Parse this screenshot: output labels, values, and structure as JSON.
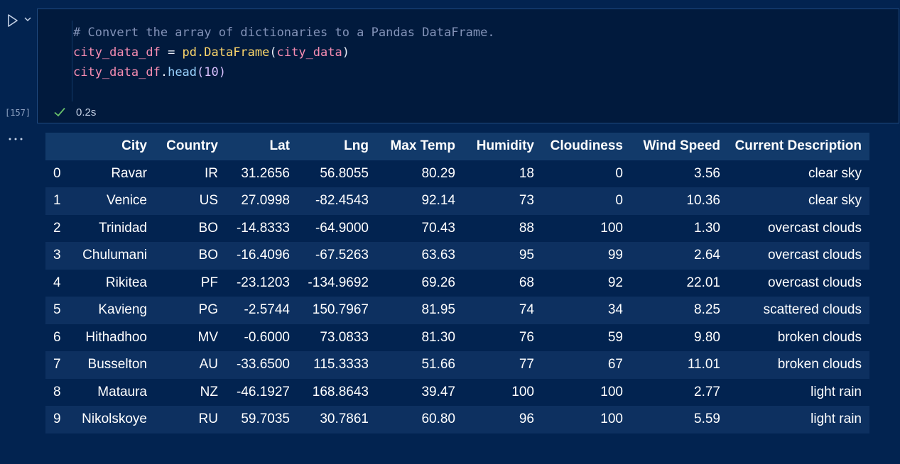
{
  "cell": {
    "execution_count": "[157]",
    "exec_time": "0.2s",
    "code": {
      "line1_comment": "# Convert the array of dictionaries to a Pandas DataFrame.",
      "line2_var": "city_data_df",
      "line2_op": " = ",
      "line2_fn": "pd.DataFrame",
      "line2_open": "(",
      "line2_arg": "city_data",
      "line2_close": ")",
      "line3_var": "city_data_df",
      "line3_dot": ".",
      "line3_method": "head",
      "line3_open": "(",
      "line3_num": "10",
      "line3_close": ")"
    }
  },
  "output": {
    "menu_label": "...",
    "table": {
      "columns": [
        "",
        "City",
        "Country",
        "Lat",
        "Lng",
        "Max Temp",
        "Humidity",
        "Cloudiness",
        "Wind Speed",
        "Current Description"
      ],
      "rows": [
        [
          "0",
          "Ravar",
          "IR",
          "31.2656",
          "56.8055",
          "80.29",
          "18",
          "0",
          "3.56",
          "clear sky"
        ],
        [
          "1",
          "Venice",
          "US",
          "27.0998",
          "-82.4543",
          "92.14",
          "73",
          "0",
          "10.36",
          "clear sky"
        ],
        [
          "2",
          "Trinidad",
          "BO",
          "-14.8333",
          "-64.9000",
          "70.43",
          "88",
          "100",
          "1.30",
          "overcast clouds"
        ],
        [
          "3",
          "Chulumani",
          "BO",
          "-16.4096",
          "-67.5263",
          "63.63",
          "95",
          "99",
          "2.64",
          "overcast clouds"
        ],
        [
          "4",
          "Rikitea",
          "PF",
          "-23.1203",
          "-134.9692",
          "69.26",
          "68",
          "92",
          "22.01",
          "overcast clouds"
        ],
        [
          "5",
          "Kavieng",
          "PG",
          "-2.5744",
          "150.7967",
          "81.95",
          "74",
          "34",
          "8.25",
          "scattered clouds"
        ],
        [
          "6",
          "Hithadhoo",
          "MV",
          "-0.6000",
          "73.0833",
          "81.30",
          "76",
          "59",
          "9.80",
          "broken clouds"
        ],
        [
          "7",
          "Busselton",
          "AU",
          "-33.6500",
          "115.3333",
          "51.66",
          "77",
          "67",
          "11.01",
          "broken clouds"
        ],
        [
          "8",
          "Mataura",
          "NZ",
          "-46.1927",
          "168.8643",
          "39.47",
          "100",
          "100",
          "2.77",
          "light rain"
        ],
        [
          "9",
          "Nikolskoye",
          "RU",
          "59.7035",
          "30.7861",
          "60.80",
          "96",
          "100",
          "5.59",
          "light rain"
        ]
      ]
    }
  },
  "icons": {
    "run": "play-icon",
    "run_menu": "chevron-down-icon",
    "success": "check-icon",
    "output_menu": "ellipsis-icon"
  },
  "colors": {
    "background": "#022350",
    "cell_background": "#011a3d",
    "success": "#69c26b"
  }
}
